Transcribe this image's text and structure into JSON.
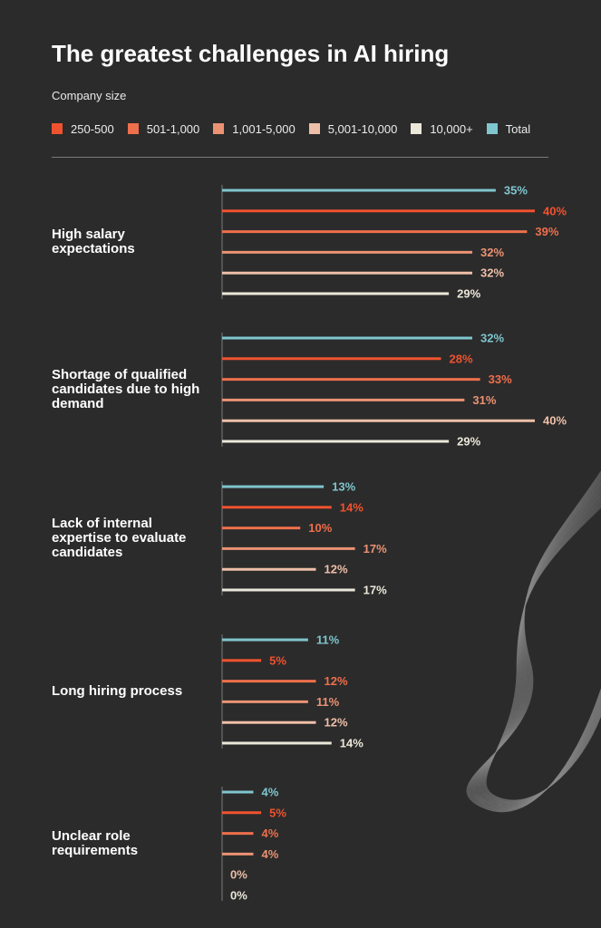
{
  "title": "The greatest challenges in AI hiring",
  "legend_title": "Company size",
  "colors": {
    "background": "#2b2b2b",
    "250-500": "#f0522f",
    "501-1,000": "#ee6f4c",
    "1,001-5,000": "#eb9273",
    "5,001-10,000": "#eebfa8",
    "10,000+": "#ebe7d9",
    "Total": "#7fc6ce"
  },
  "chart_data": {
    "type": "bar",
    "orientation": "horizontal",
    "title": "The greatest challenges in AI hiring",
    "legend_title": "Company size",
    "legend_position": "top",
    "unit": "%",
    "xlim": [
      0,
      40
    ],
    "categories": [
      "High salary expectations",
      "Shortage of qualified candidates due to high demand",
      "Lack of internal expertise to evaluate candidates",
      "Long hiring process",
      "Unclear role requirements"
    ],
    "series": [
      {
        "name": "Total",
        "values": [
          35,
          32,
          13,
          11,
          4
        ]
      },
      {
        "name": "250-500",
        "values": [
          40,
          28,
          14,
          5,
          5
        ]
      },
      {
        "name": "501-1,000",
        "values": [
          39,
          33,
          10,
          12,
          4
        ]
      },
      {
        "name": "1,001-5,000",
        "values": [
          32,
          31,
          17,
          11,
          4
        ]
      },
      {
        "name": "5,001-10,000",
        "values": [
          32,
          40,
          12,
          12,
          0
        ]
      },
      {
        "name": "10,000+",
        "values": [
          29,
          29,
          17,
          14,
          0
        ]
      }
    ],
    "series_colors": {
      "Total": "#7fc6ce",
      "250-500": "#f0522f",
      "501-1,000": "#ee6f4c",
      "1,001-5,000": "#eb9273",
      "5,001-10,000": "#eebfa8",
      "10,000+": "#ebe7d9"
    },
    "legend_order": [
      "250-500",
      "501-1,000",
      "1,001-5,000",
      "5,001-10,000",
      "10,000+",
      "Total"
    ]
  }
}
